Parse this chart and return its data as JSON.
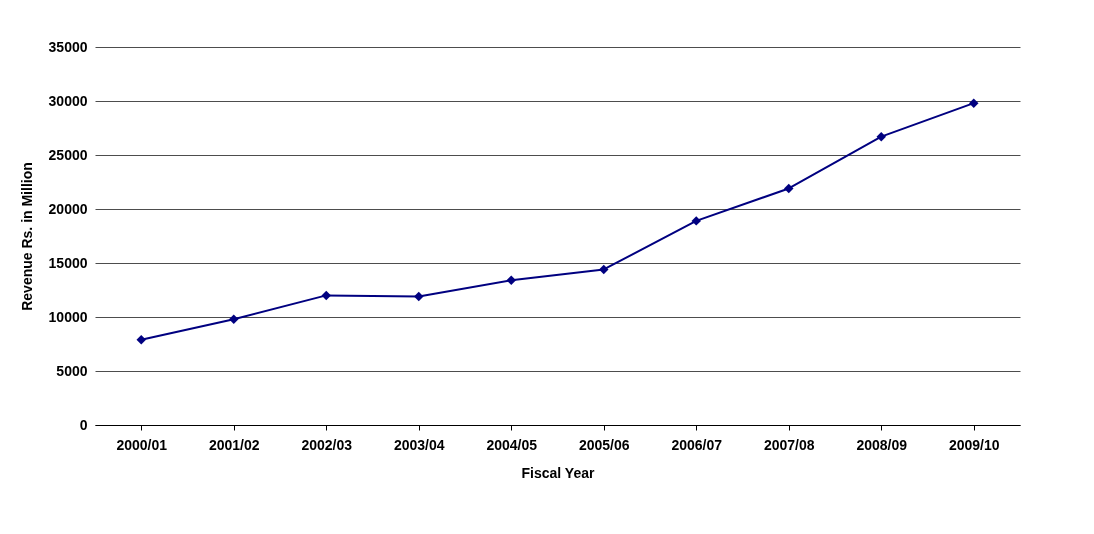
{
  "chart_data": {
    "type": "line",
    "xlabel": "Fiscal Year",
    "ylabel": "Revenue Rs. in Million",
    "categories": [
      "2000/01",
      "2001/02",
      "2002/03",
      "2003/04",
      "2004/05",
      "2005/06",
      "2006/07",
      "2007/08",
      "2008/09",
      "2009/10"
    ],
    "series": [
      {
        "color": "#000080",
        "values": [
          7900,
          9800,
          12000,
          11900,
          13400,
          14400,
          18900,
          21900,
          26700,
          29800
        ]
      }
    ],
    "ylim": [
      0,
      35000
    ],
    "yticks": [
      0,
      5000,
      10000,
      15000,
      20000,
      25000,
      30000,
      35000
    ],
    "grid": "y",
    "marker": "diamond",
    "line_style": "solid"
  }
}
